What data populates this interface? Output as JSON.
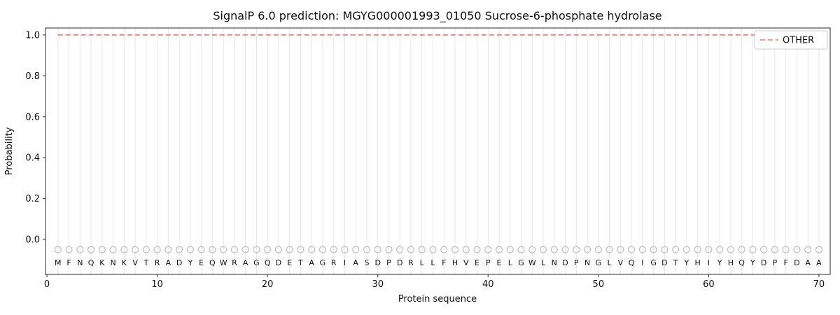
{
  "title": "SignalP 6.0 prediction: MGYG000001993_01050 Sucrose-6-phosphate hydrolase",
  "chart_data": {
    "type": "line",
    "title": "SignalP 6.0 prediction: MGYG000001993_01050 Sucrose-6-phosphate hydrolase",
    "xlabel": "Protein sequence",
    "ylabel": "Probability",
    "xlim": [
      -0.13,
      71.02
    ],
    "ylim": [
      -0.171,
      1.034
    ],
    "xticks": {
      "values": [
        0,
        10,
        20,
        30,
        40,
        50,
        60,
        70
      ],
      "labels": [
        "0",
        "10",
        "20",
        "30",
        "40",
        "50",
        "60",
        "70"
      ]
    },
    "yticks": {
      "values": [
        0,
        0.2,
        0.4,
        0.6,
        0.8,
        1.0
      ],
      "labels": [
        "0.0",
        "0.2",
        "0.4",
        "0.6",
        "0.8",
        "1.0"
      ]
    },
    "grid": "light vertical gridline at every residue position, no horizontal gridlines",
    "sequence": "MFNQKNKVTRADYEQWRAGQDETAGRIASDPDRLLFHVEPELGWLNDPNGLVQIGDTYHIYHQYDPFDAA",
    "sequence_start_position": 1,
    "marker_y": -0.05,
    "letter_y": -0.113,
    "series": [
      {
        "name": "OTHER",
        "line_style": "dashed",
        "color": "#ff7272",
        "x_start": 1,
        "values": [
          1,
          1,
          1,
          1,
          1,
          1,
          1,
          1,
          1,
          1,
          1,
          1,
          1,
          1,
          1,
          1,
          1,
          1,
          1,
          1,
          1,
          1,
          1,
          1,
          1,
          1,
          1,
          1,
          1,
          1,
          1,
          1,
          1,
          1,
          1,
          1,
          1,
          1,
          1,
          1,
          1,
          1,
          1,
          1,
          1,
          1,
          1,
          1,
          1,
          1,
          1,
          1,
          1,
          1,
          1,
          1,
          1,
          1,
          1,
          1,
          1,
          1,
          1,
          1,
          1,
          1,
          1,
          1,
          1,
          1
        ]
      }
    ],
    "legend": {
      "position": "upper right",
      "entries": [
        {
          "label": "OTHER",
          "color": "#ff7272",
          "style": "dashed"
        }
      ]
    },
    "colors": {
      "grid": "#e7e7e7",
      "frame": "#2a2a2a",
      "tick": "#2a2a2a",
      "text": "#111111",
      "marker": "#bdbdbd",
      "letter": "#111111",
      "legend_border": "#cccccc",
      "background": "#ffffff"
    }
  }
}
